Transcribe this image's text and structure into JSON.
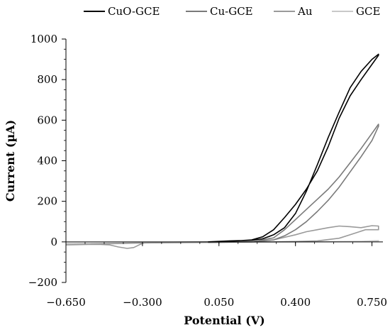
{
  "chart_data": {
    "type": "line",
    "xlabel": "Potential (V)",
    "ylabel": "Current (µA)",
    "xlim": [
      -0.65,
      0.8
    ],
    "ylim": [
      -200,
      1000
    ],
    "x_ticks": [
      -0.65,
      -0.3,
      0.05,
      0.4,
      0.75
    ],
    "x_tick_labels": [
      "−0.650",
      "−0.300",
      "0.050",
      "0.400",
      "0.750"
    ],
    "y_ticks": [
      -200,
      0,
      200,
      400,
      600,
      800,
      1000
    ],
    "y_tick_labels": [
      "−200",
      "0",
      "200",
      "400",
      "600",
      "800",
      "1000"
    ],
    "grid": false,
    "legend_position": "top",
    "series": [
      {
        "name": "CuO-GCE",
        "color": "#000000",
        "x": [
          0.0,
          0.1,
          0.2,
          0.25,
          0.3,
          0.35,
          0.4,
          0.45,
          0.5,
          0.55,
          0.6,
          0.65,
          0.7,
          0.75,
          0.78,
          0.78,
          0.74,
          0.7,
          0.65,
          0.6,
          0.55,
          0.5,
          0.45,
          0.4,
          0.35,
          0.3,
          0.25,
          0.2,
          0.1,
          0.0
        ],
        "y": [
          0,
          5,
          8,
          15,
          35,
          70,
          140,
          250,
          380,
          515,
          640,
          760,
          840,
          900,
          925,
          920,
          860,
          800,
          720,
          610,
          470,
          350,
          260,
          185,
          120,
          60,
          25,
          10,
          3,
          0
        ]
      },
      {
        "name": "Cu-GCE",
        "color": "#7a7a7a",
        "x": [
          0.0,
          0.2,
          0.3,
          0.35,
          0.4,
          0.45,
          0.5,
          0.55,
          0.6,
          0.65,
          0.7,
          0.75,
          0.78,
          0.78,
          0.74,
          0.7,
          0.65,
          0.6,
          0.55,
          0.5,
          0.45,
          0.4,
          0.35,
          0.3,
          0.2,
          0.0
        ],
        "y": [
          -3,
          0,
          10,
          30,
          60,
          100,
          150,
          205,
          270,
          345,
          420,
          500,
          570,
          580,
          520,
          460,
          390,
          320,
          260,
          210,
          160,
          110,
          60,
          20,
          0,
          -3
        ]
      },
      {
        "name": "Au",
        "color": "#9a9a9a",
        "x": [
          -0.65,
          -0.55,
          -0.5,
          -0.45,
          -0.41,
          -0.37,
          -0.34,
          -0.31,
          -0.29,
          -0.2,
          0.0,
          0.2,
          0.3,
          0.4,
          0.45,
          0.5,
          0.55,
          0.6,
          0.65,
          0.7,
          0.75,
          0.78,
          0.78,
          0.72,
          0.65,
          0.6,
          0.5,
          0.4,
          0.3,
          0.0,
          -0.3,
          -0.65
        ],
        "y": [
          -15,
          -13,
          -12,
          -15,
          -25,
          -32,
          -28,
          -12,
          -5,
          -2,
          0,
          2,
          10,
          35,
          50,
          60,
          70,
          78,
          75,
          70,
          80,
          78,
          60,
          60,
          35,
          18,
          5,
          2,
          0,
          -2,
          -5,
          -15
        ]
      },
      {
        "name": "GCE",
        "color": "#c8c8c8",
        "x": [
          -0.65,
          -0.3,
          0.0,
          0.3,
          0.5,
          0.6,
          0.7,
          0.78,
          0.78,
          0.5,
          0.0,
          -0.65
        ],
        "y": [
          -10,
          -5,
          -3,
          0,
          1,
          2,
          3,
          6,
          4,
          0,
          -2,
          -8
        ]
      }
    ]
  }
}
